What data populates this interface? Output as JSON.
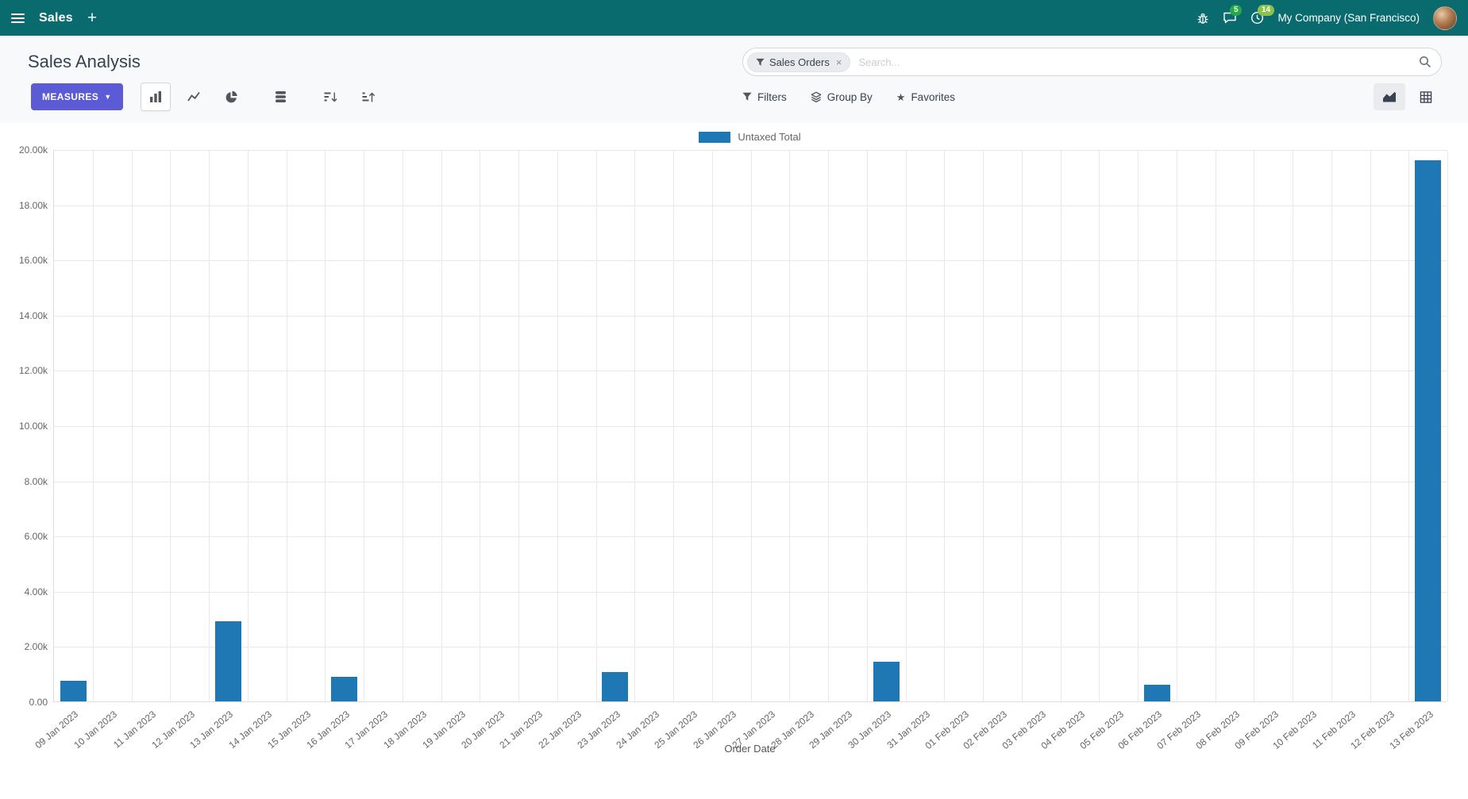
{
  "navbar": {
    "menu_title": "Sales",
    "plus_label": "+",
    "message_badge": "5",
    "activity_badge": "14",
    "company": "My Company (San Francisco)"
  },
  "control_panel": {
    "title": "Sales Analysis",
    "search": {
      "facet": "Sales Orders",
      "facet_remove": "×",
      "placeholder": "Search..."
    },
    "measures_label": "MEASURES",
    "filters_label": "Filters",
    "groupby_label": "Group By",
    "favorites_label": "Favorites"
  },
  "chart_data": {
    "type": "bar",
    "title": "",
    "legend": "Untaxed Total",
    "xlabel": "Order Date",
    "ylabel": "",
    "ylim": [
      0,
      20000
    ],
    "ytick_step": 2000,
    "ytick_labels": [
      "0.00",
      "2.00k",
      "4.00k",
      "6.00k",
      "8.00k",
      "10.00k",
      "12.00k",
      "14.00k",
      "16.00k",
      "18.00k",
      "20.00k"
    ],
    "grid": true,
    "legend_position": "top",
    "categories": [
      "09 Jan 2023",
      "10 Jan 2023",
      "11 Jan 2023",
      "12 Jan 2023",
      "13 Jan 2023",
      "14 Jan 2023",
      "15 Jan 2023",
      "16 Jan 2023",
      "17 Jan 2023",
      "18 Jan 2023",
      "19 Jan 2023",
      "20 Jan 2023",
      "21 Jan 2023",
      "22 Jan 2023",
      "23 Jan 2023",
      "24 Jan 2023",
      "25 Jan 2023",
      "26 Jan 2023",
      "27 Jan 2023",
      "28 Jan 2023",
      "29 Jan 2023",
      "30 Jan 2023",
      "31 Jan 2023",
      "01 Feb 2023",
      "02 Feb 2023",
      "03 Feb 2023",
      "04 Feb 2023",
      "05 Feb 2023",
      "06 Feb 2023",
      "07 Feb 2023",
      "08 Feb 2023",
      "09 Feb 2023",
      "10 Feb 2023",
      "11 Feb 2023",
      "12 Feb 2023",
      "13 Feb 2023"
    ],
    "values": [
      750,
      0,
      0,
      0,
      2900,
      0,
      0,
      900,
      0,
      0,
      0,
      0,
      0,
      0,
      1050,
      0,
      0,
      0,
      0,
      0,
      0,
      1450,
      0,
      0,
      0,
      0,
      0,
      0,
      600,
      0,
      0,
      0,
      0,
      0,
      0,
      19600
    ]
  },
  "colors": {
    "navbar": "#0a6b6e",
    "primary": "#5b5bd6",
    "bar": "#1f77b4",
    "badge_chat": "#28a745",
    "badge_activity": "#8bc34a"
  }
}
